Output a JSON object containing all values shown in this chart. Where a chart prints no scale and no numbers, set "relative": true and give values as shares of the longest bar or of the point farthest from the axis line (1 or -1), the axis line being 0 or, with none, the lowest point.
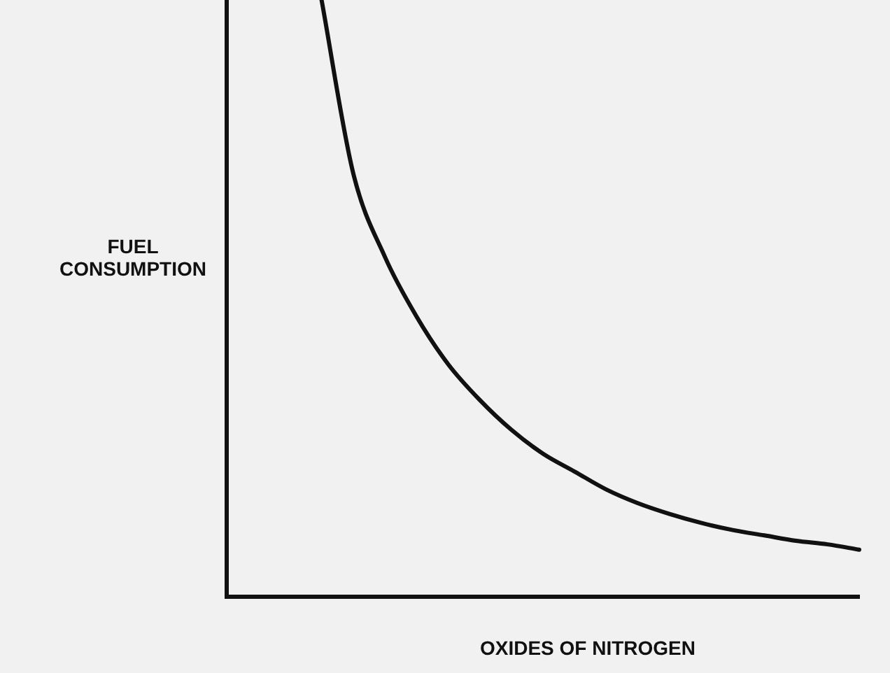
{
  "chart_data": {
    "type": "line",
    "relative": true,
    "xlabel": "OXIDES OF NITROGEN",
    "ylabel": "FUEL CONSUMPTION",
    "categories": [
      null,
      null,
      null,
      null,
      null,
      null,
      null,
      null,
      null,
      null,
      null,
      null,
      null,
      null,
      null,
      null,
      null,
      null,
      null,
      null,
      null
    ],
    "series": [
      {
        "color": "#111111",
        "values": [
          null,
          null,
          null,
          1,
          0.71,
          0.57,
          0.47,
          0.39,
          0.33,
          0.28,
          0.24,
          0.21,
          0.18,
          0.157,
          0.139,
          0.124,
          0.112,
          0.103,
          0.094,
          0.088,
          0.079
        ]
      }
    ],
    "grid": false,
    "legend": false,
    "marker": "none",
    "line_style": "solid"
  }
}
